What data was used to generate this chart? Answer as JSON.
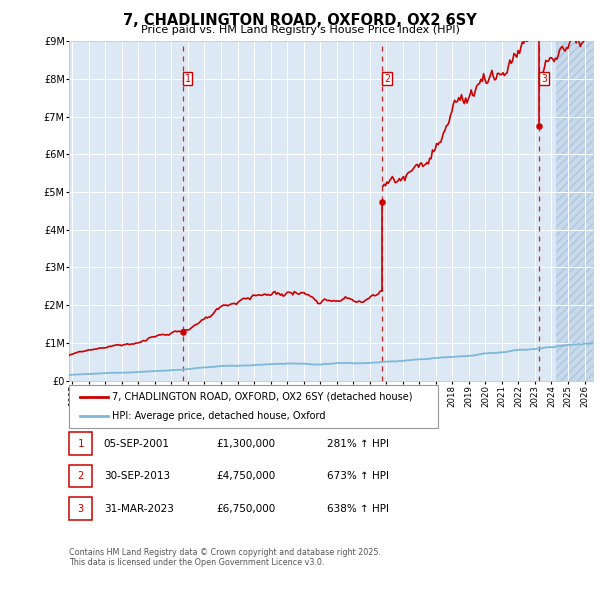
{
  "title": "7, CHADLINGTON ROAD, OXFORD, OX2 6SY",
  "subtitle": "Price paid vs. HM Land Registry's House Price Index (HPI)",
  "purchases": [
    {
      "date": "2001-09-05",
      "price": 1300000,
      "label": "1"
    },
    {
      "date": "2013-09-30",
      "price": 4750000,
      "label": "2"
    },
    {
      "date": "2023-03-31",
      "price": 6750000,
      "label": "3"
    }
  ],
  "purchase_labels_info": [
    {
      "num": "1",
      "date": "05-SEP-2001",
      "price": "£1,300,000",
      "hpi": "281% ↑ HPI"
    },
    {
      "num": "2",
      "date": "30-SEP-2013",
      "price": "£4,750,000",
      "hpi": "673% ↑ HPI"
    },
    {
      "num": "3",
      "date": "31-MAR-2023",
      "price": "£6,750,000",
      "hpi": "638% ↑ HPI"
    }
  ],
  "legend_line1": "7, CHADLINGTON ROAD, OXFORD, OX2 6SY (detached house)",
  "legend_line2": "HPI: Average price, detached house, Oxford",
  "footnote": "Contains HM Land Registry data © Crown copyright and database right 2025.\nThis data is licensed under the Open Government Licence v3.0.",
  "hpi_line_color": "#7db8d8",
  "house_line_color": "#cc0000",
  "bg_chart_color": "#dce9f5",
  "grid_color": "#ffffff",
  "dashed_line_color": "#cc0000",
  "ylim": [
    0,
    9000000
  ],
  "xlim_start": 1994.8,
  "xlim_end": 2026.5,
  "y_ticks": [
    0,
    1000000,
    2000000,
    3000000,
    4000000,
    5000000,
    6000000,
    7000000,
    8000000,
    9000000
  ],
  "y_tick_labels": [
    "£0",
    "£1M",
    "£2M",
    "£3M",
    "£4M",
    "£5M",
    "£6M",
    "£7M",
    "£8M",
    "£9M"
  ],
  "hatch_start": 2024.25,
  "purchase_decimal_dates": [
    2001.674,
    2013.747,
    2023.247
  ]
}
